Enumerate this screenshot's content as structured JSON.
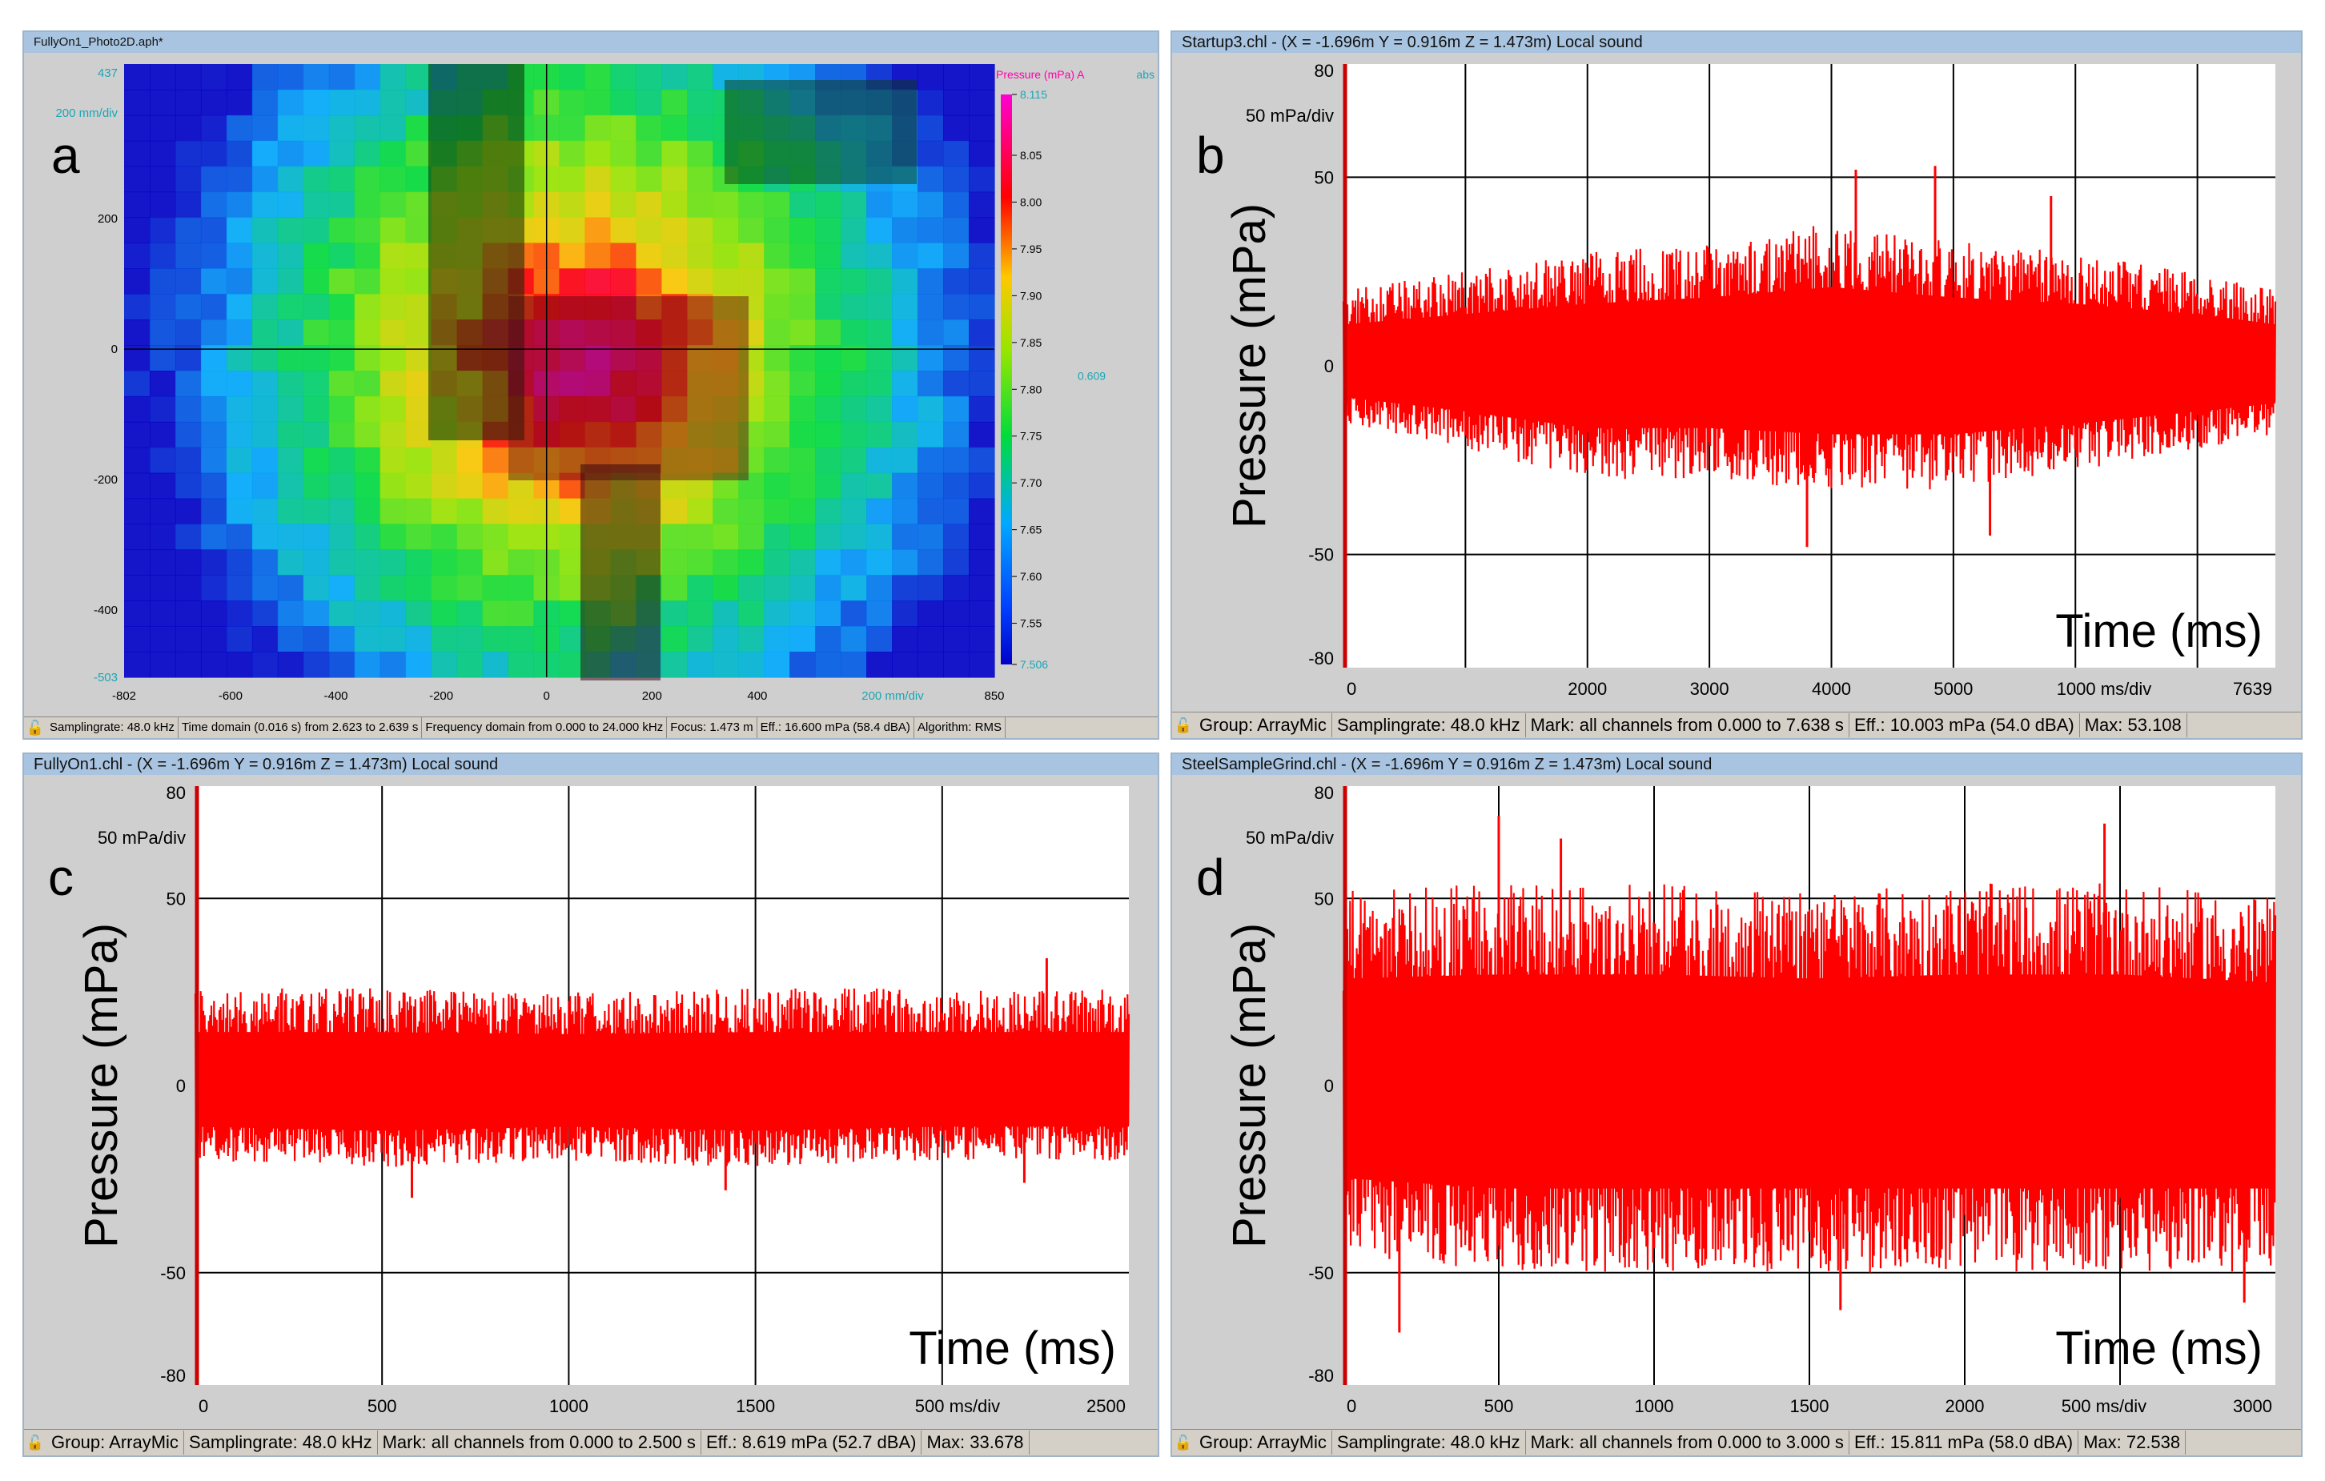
{
  "panel_a": {
    "letter": "a",
    "title": "FullyOn1_Photo2D.aph*",
    "y_top_value": "437",
    "y_scale": "200 mm/div",
    "colorbar_title": "Pressure (mPa) A",
    "colorbar_abs": "abs",
    "colorbar_marker": "0.609",
    "status": [
      "Samplingrate: 48.0 kHz",
      "Time domain (0.016 s) from 2.623 to 2.639 s",
      "Frequency domain from 0.000 to 24.000 kHz",
      "Focus: 1.473 m",
      "Eff.: 16.600 mPa (58.4 dBA)",
      "Algorithm: RMS"
    ],
    "chart_data": {
      "type": "heatmap",
      "x_ticks": [
        "-802",
        "-600",
        "-400",
        "-200",
        "0",
        "200",
        "400",
        "850"
      ],
      "x_scale": "200 mm/div",
      "y_ticks": [
        "200",
        "0",
        "-200",
        "-400",
        "-503"
      ],
      "colorbar_ticks": [
        "8.115",
        "8.05",
        "8.00",
        "7.95",
        "7.90",
        "7.85",
        "7.80",
        "7.75",
        "7.70",
        "7.65",
        "7.60",
        "7.55",
        "7.506"
      ],
      "colorbar_range": [
        7.506,
        8.115
      ]
    }
  },
  "panel_b": {
    "letter": "b",
    "title": "Startup3.chl - (X = -1.696m Y = 0.916m Z = 1.473m) Local sound",
    "y_scale": "50 mPa/div",
    "ylabel": "Pressure (mPa)",
    "xlabel": "Time (ms)",
    "status": [
      "Group: ArrayMic",
      "Samplingrate: 48.0 kHz",
      "Mark: all channels from 0.000 to 7.638 s",
      "Eff.: 10.003 mPa (54.0 dBA)",
      "Max: 53.108"
    ],
    "chart_data": {
      "type": "line",
      "series": [
        {
          "color": "#ff0000"
        }
      ],
      "x_range": [
        0,
        7639
      ],
      "ylim": [
        -80,
        80
      ],
      "y_ticks": [
        "80",
        "50",
        "0",
        "-50",
        "-80"
      ],
      "x_ticks": [
        "0",
        "2000",
        "3000",
        "4000",
        "5000"
      ],
      "x_scale": "1000 ms/div",
      "x_end": "7639",
      "grid_x": [
        1000,
        2000,
        3000,
        4000,
        5000,
        6000,
        7000
      ],
      "envelope": {
        "x": [
          0,
          1000,
          2000,
          3000,
          4000,
          5000,
          6000,
          7000,
          7639
        ],
        "max": [
          20,
          25,
          30,
          33,
          38,
          33,
          30,
          25,
          20
        ],
        "min": [
          -15,
          -22,
          -30,
          -30,
          -33,
          -33,
          -28,
          -22,
          -18
        ]
      },
      "peaks": [
        {
          "x": 4200,
          "y": 52
        },
        {
          "x": 4850,
          "y": 53
        },
        {
          "x": 5800,
          "y": 45
        },
        {
          "x": 3800,
          "y": -48
        },
        {
          "x": 5300,
          "y": -45
        }
      ]
    }
  },
  "panel_c": {
    "letter": "c",
    "title": "FullyOn1.chl - (X = -1.696m Y = 0.916m Z = 1.473m) Local sound",
    "y_scale": "50 mPa/div",
    "ylabel": "Pressure (mPa)",
    "xlabel": "Time (ms)",
    "status": [
      "Group: ArrayMic",
      "Samplingrate: 48.0 kHz",
      "Mark: all channels from 0.000 to 2.500 s",
      "Eff.: 8.619 mPa (52.7 dBA)",
      "Max: 33.678"
    ],
    "chart_data": {
      "type": "line",
      "series": [
        {
          "color": "#ff0000"
        }
      ],
      "x_range": [
        0,
        2500
      ],
      "ylim": [
        -80,
        80
      ],
      "y_ticks": [
        "80",
        "50",
        "0",
        "-50",
        "-80"
      ],
      "x_ticks": [
        "0",
        "500",
        "1000",
        "1500"
      ],
      "x_scale": "500 ms/div",
      "x_end": "2500",
      "grid_x": [
        500,
        1000,
        1500,
        2000
      ],
      "envelope": {
        "x": [
          0,
          500,
          1000,
          1500,
          2000,
          2500
        ],
        "max": [
          26,
          26,
          25,
          26,
          26,
          26
        ],
        "min": [
          -20,
          -22,
          -20,
          -22,
          -20,
          -20
        ]
      },
      "peaks": [
        {
          "x": 2280,
          "y": 34
        },
        {
          "x": 580,
          "y": -30
        },
        {
          "x": 1420,
          "y": -28
        },
        {
          "x": 2220,
          "y": -26
        }
      ]
    }
  },
  "panel_d": {
    "letter": "d",
    "title": "SteelSampleGrind.chl - (X = -1.696m Y = 0.916m Z = 1.473m) Local sound",
    "y_scale": "50 mPa/div",
    "ylabel": "Pressure (mPa)",
    "xlabel": "Time (ms)",
    "status": [
      "Group: ArrayMic",
      "Samplingrate: 48.0 kHz",
      "Mark: all channels from 0.000 to 3.000 s",
      "Eff.: 15.811 mPa (58.0 dBA)",
      "Max: 72.538"
    ],
    "chart_data": {
      "type": "line",
      "series": [
        {
          "color": "#ff0000"
        }
      ],
      "x_range": [
        0,
        3000
      ],
      "ylim": [
        -80,
        80
      ],
      "y_ticks": [
        "80",
        "50",
        "0",
        "-50",
        "-80"
      ],
      "x_ticks": [
        "0",
        "500",
        "1000",
        "1500",
        "2000"
      ],
      "x_scale": "500 ms/div",
      "x_end": "3000",
      "grid_x": [
        500,
        1000,
        1500,
        2000,
        2500
      ],
      "envelope": {
        "x": [
          0,
          500,
          1000,
          1500,
          2000,
          2500,
          3000
        ],
        "max": [
          52,
          54,
          54,
          52,
          54,
          54,
          50
        ],
        "min": [
          -45,
          -50,
          -50,
          -50,
          -50,
          -50,
          -50
        ]
      },
      "peaks": [
        {
          "x": 500,
          "y": 72
        },
        {
          "x": 2450,
          "y": 70
        },
        {
          "x": 700,
          "y": 66
        },
        {
          "x": 180,
          "y": -66
        },
        {
          "x": 1600,
          "y": -60
        },
        {
          "x": 2900,
          "y": -58
        }
      ]
    }
  }
}
